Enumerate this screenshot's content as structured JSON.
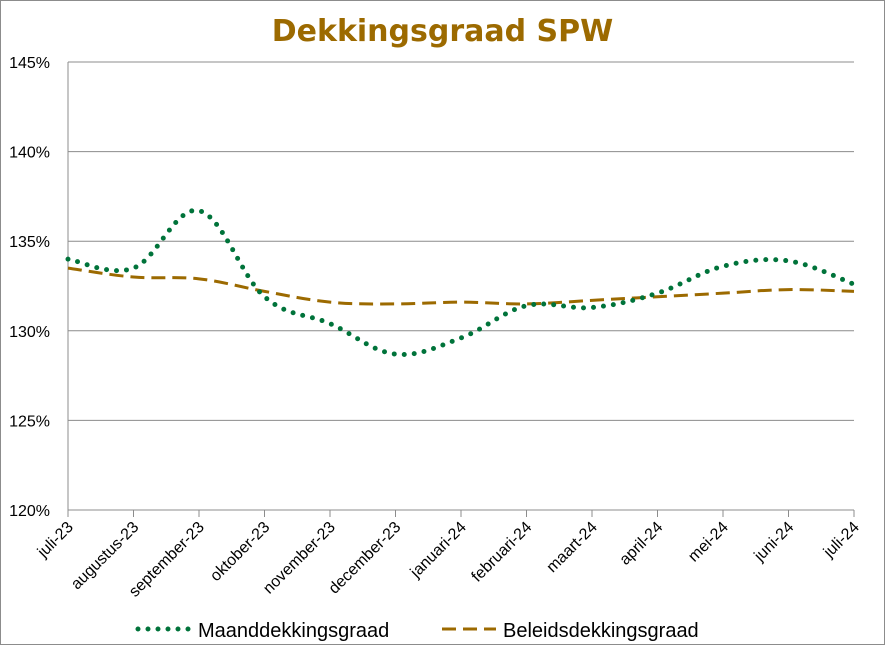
{
  "chart_data": {
    "type": "line",
    "title": "Dekkingsgraad  SPW",
    "xlabel": "",
    "ylabel": "",
    "categories": [
      "juli-23",
      "augustus-23",
      "september-23",
      "oktober-23",
      "november-23",
      "december-23",
      "januari-24",
      "februari-24",
      "maart-24",
      "april-24",
      "mei-24",
      "juni-24",
      "juli-24"
    ],
    "y_tick_labels": [
      "120%",
      "125%",
      "130%",
      "135%",
      "140%",
      "145%"
    ],
    "ylim": [
      120,
      145
    ],
    "y_unit": "%",
    "grid": "horizontal",
    "legend_position": "bottom",
    "series": [
      {
        "name": "Maanddekkingsgraad",
        "style": "dotted",
        "color": "#00733a",
        "values": [
          134.0,
          133.5,
          136.7,
          131.9,
          130.4,
          128.7,
          129.6,
          131.4,
          131.3,
          132.1,
          133.6,
          133.9,
          132.6
        ]
      },
      {
        "name": "Beleidsdekkingsgraad",
        "style": "dashed",
        "color": "#9c6a00",
        "values": [
          133.5,
          133.0,
          132.9,
          132.2,
          131.6,
          131.5,
          131.6,
          131.5,
          131.7,
          131.9,
          132.1,
          132.3,
          132.2
        ]
      }
    ]
  }
}
